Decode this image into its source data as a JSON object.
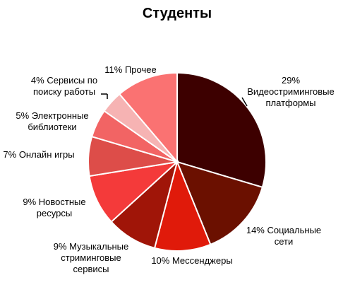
{
  "chart_data": {
    "type": "pie",
    "title": "Студенты",
    "start_angle_deg": 0,
    "direction": "clockwise",
    "slices": [
      {
        "category": "Видеостриминговые платформы",
        "value": 29,
        "label_lines": [
          "29%",
          "Видеостриминговые",
          "платформы"
        ],
        "color": "#3d0000"
      },
      {
        "category": "Социальные сети",
        "value": 14,
        "label_lines": [
          "14% Социальные",
          "сети"
        ],
        "color": "#6b1000"
      },
      {
        "category": "Мессенджеры",
        "value": 10,
        "label_lines": [
          "10%  Мессенджеры"
        ],
        "color": "#e01a0a"
      },
      {
        "category": "Музыкальные стриминговые сервисы",
        "value": 9,
        "label_lines": [
          "9% Музыкальные",
          "стриминговые",
          "сервисы"
        ],
        "color": "#a01508"
      },
      {
        "category": "Новостные ресурсы",
        "value": 9,
        "label_lines": [
          "9% Новостные",
          "ресурсы"
        ],
        "color": "#f43a3a"
      },
      {
        "category": "Онлайн игры",
        "value": 7,
        "label_lines": [
          "7% Онлайн игры"
        ],
        "color": "#dd4d49"
      },
      {
        "category": "Электронные библиотеки",
        "value": 5,
        "label_lines": [
          "5% Электронные",
          "библиотеки"
        ],
        "color": "#f26464"
      },
      {
        "category": "Сервисы по поиску работы",
        "value": 4,
        "label_lines": [
          "4% Сервисы по",
          "поиску работы"
        ],
        "color": "#f6b3b3"
      },
      {
        "category": "Прочее",
        "value": 11,
        "label_lines": [
          "11% Прочее"
        ],
        "color": "#fa7272"
      }
    ]
  }
}
